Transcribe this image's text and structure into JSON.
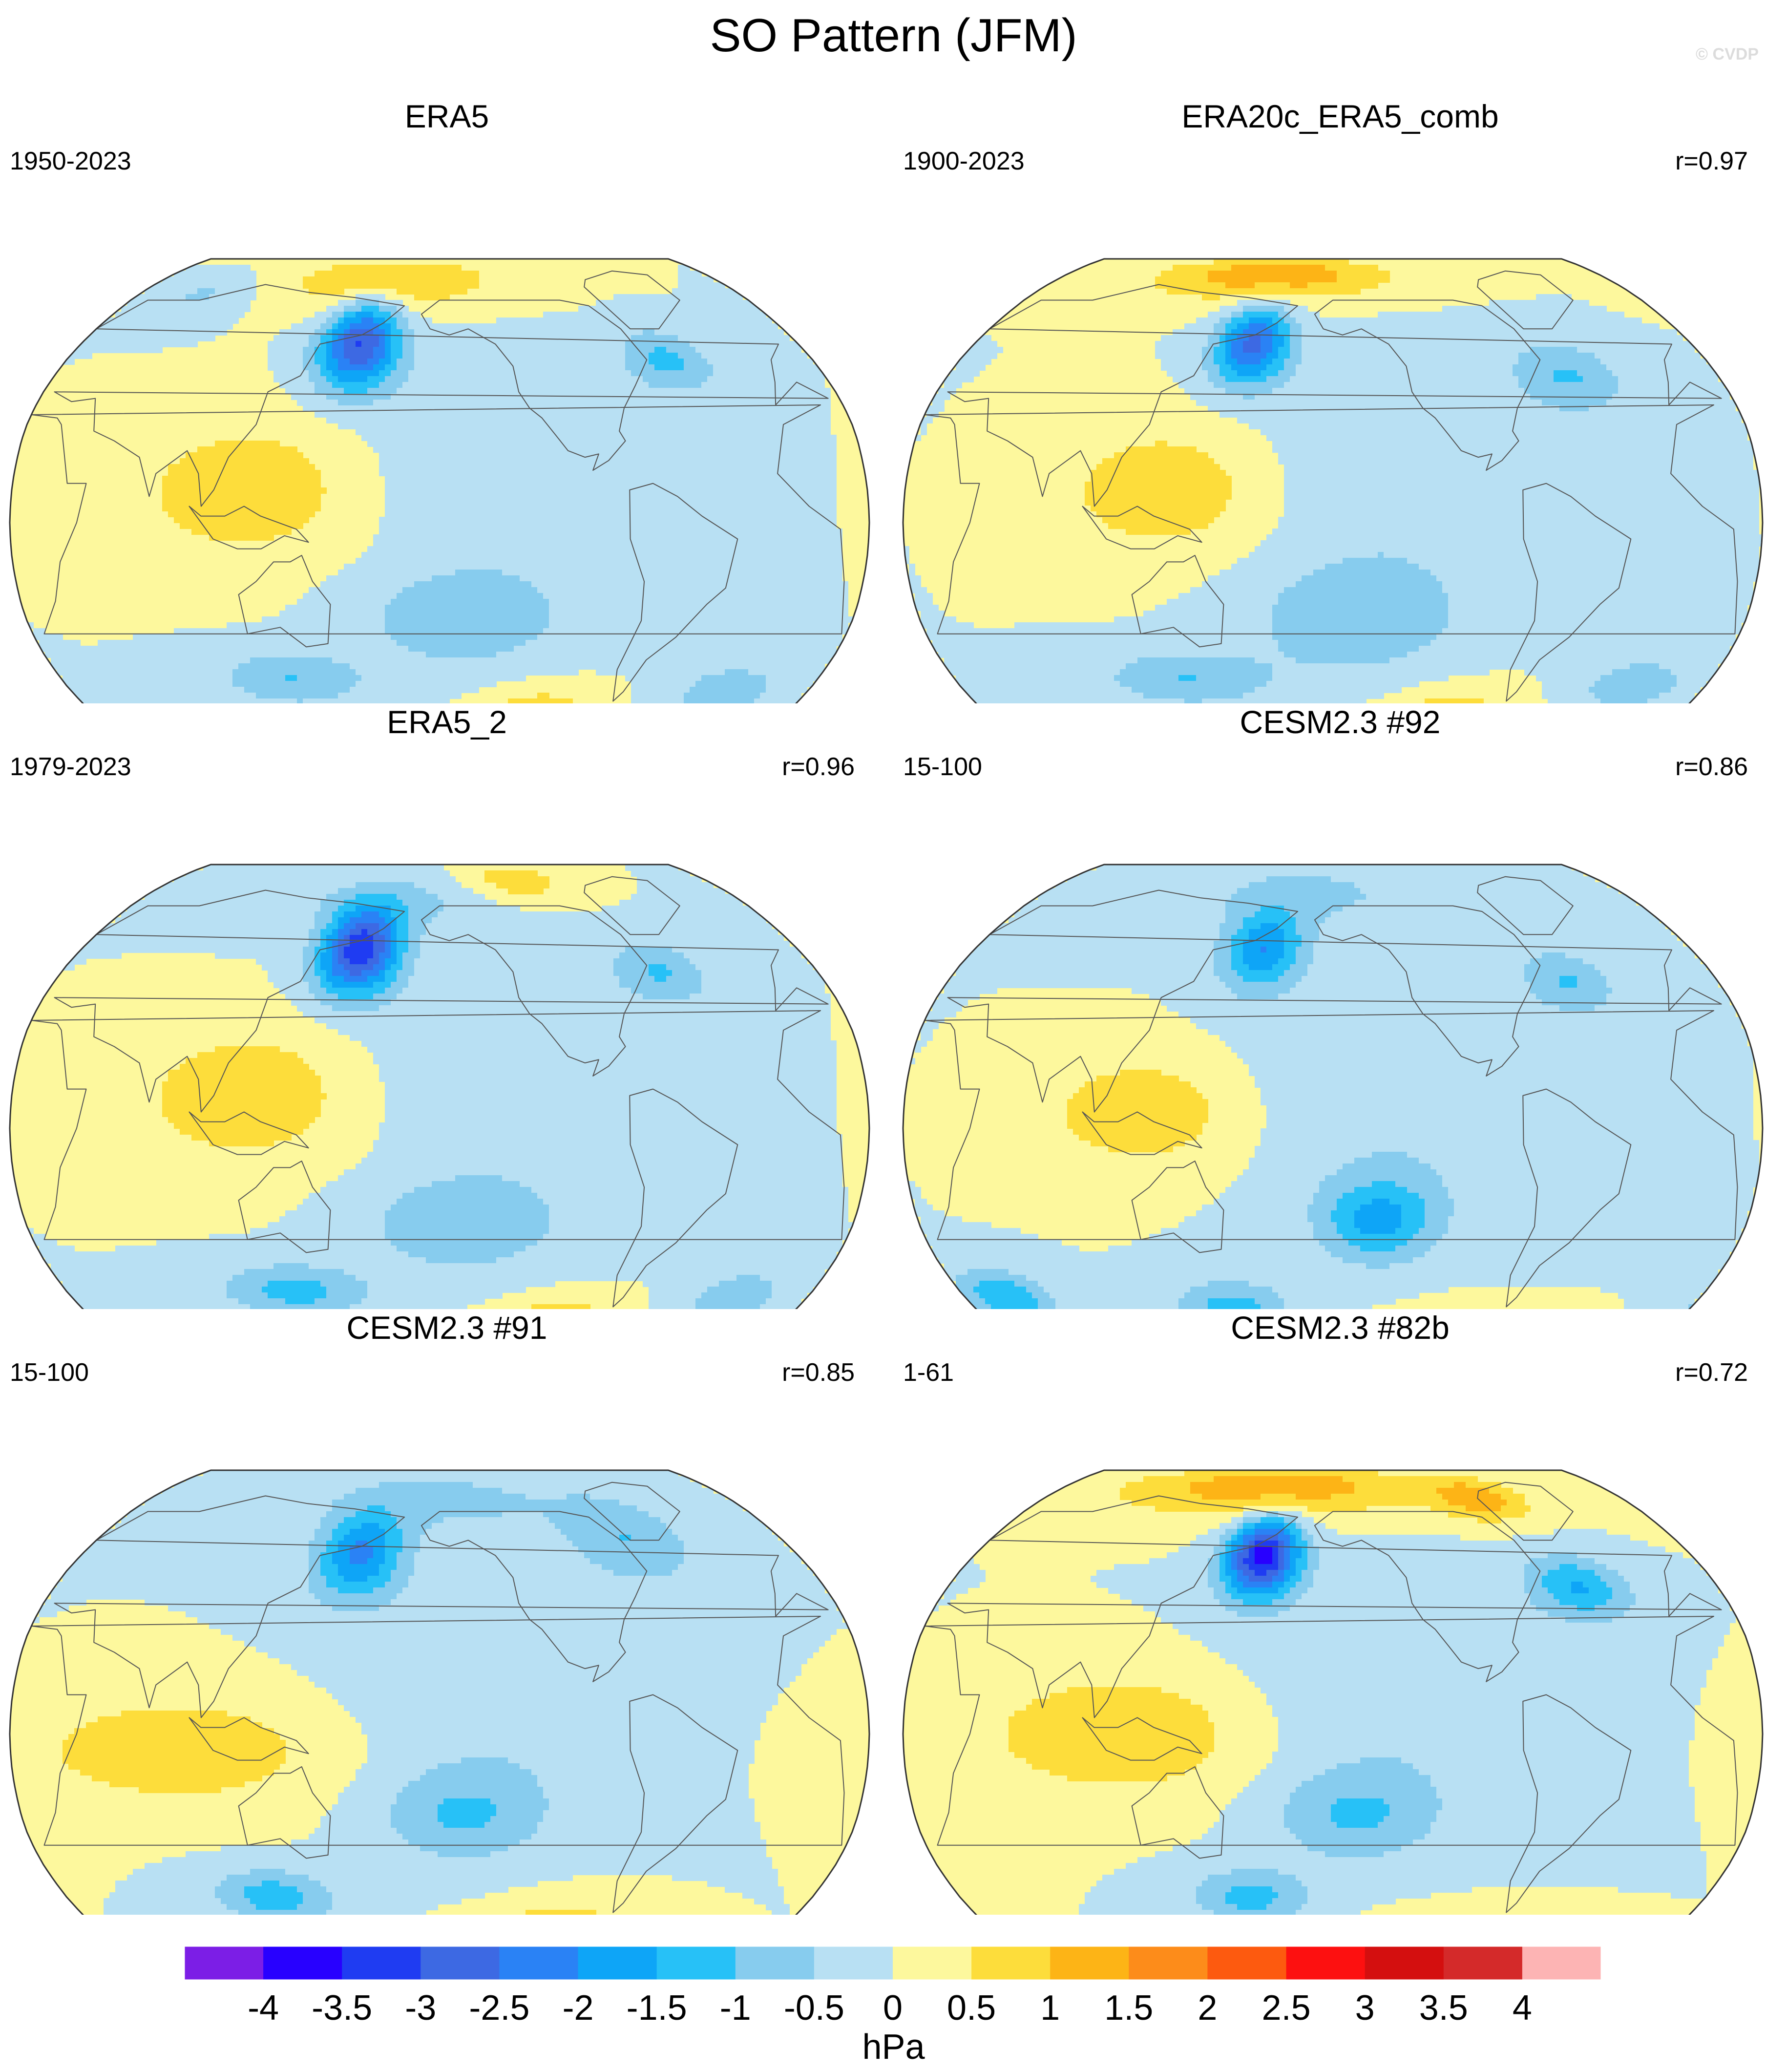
{
  "title": "SO Pattern (JFM)",
  "watermark": "© CVDP",
  "colors": {
    "colorbar": [
      "#7c1ee6",
      "#2800ff",
      "#1f3cf2",
      "#3d69e3",
      "#2a82f5",
      "#0ea5f7",
      "#27c1f7",
      "#87ccee",
      "#b8e0f3",
      "#fdf89d",
      "#fddd3b",
      "#fdb416",
      "#fd8c1a",
      "#fd5a0f",
      "#fd1010",
      "#d40f0f",
      "#d42a2a",
      "#fdb4b4"
    ],
    "coast": "#555555",
    "outline": "#333333"
  },
  "chart_data": [
    {
      "type": "heatmap",
      "projection": "Robinson (Pacific-centered)",
      "title": "ERA5",
      "period": "1950-2023",
      "correlation": "",
      "features": [
        {
          "lon": 160,
          "lat": 55,
          "lon_sd": 14,
          "lat_sd": 10,
          "value": -3.0
        },
        {
          "lon": 170,
          "lat": 78,
          "lon_sd": 50,
          "lat_sd": 8,
          "value": 1.0
        },
        {
          "lon": 310,
          "lat": 50,
          "lon_sd": 15,
          "lat_sd": 7,
          "value": -1.1
        },
        {
          "lon": 60,
          "lat": 72,
          "lon_sd": 20,
          "lat_sd": 6,
          "value": -0.6
        },
        {
          "lon": 120,
          "lat": 10,
          "lon_sd": 35,
          "lat_sd": 15,
          "value": 0.9
        },
        {
          "lon": 210,
          "lat": -30,
          "lon_sd": 30,
          "lat_sd": 10,
          "value": -0.9
        },
        {
          "lon": 130,
          "lat": -48,
          "lon_sd": 25,
          "lat_sd": 6,
          "value": -1.0
        },
        {
          "lon": 250,
          "lat": -65,
          "lon_sd": 20,
          "lat_sd": 8,
          "value": 1.6
        },
        {
          "lon": 340,
          "lat": -52,
          "lon_sd": 18,
          "lat_sd": 6,
          "value": -0.9
        },
        {
          "lon": 230,
          "lat": 15,
          "lon_sd": 45,
          "lat_sd": 25,
          "value": -0.5
        }
      ]
    },
    {
      "type": "heatmap",
      "projection": "Robinson (Pacific-centered)",
      "title": "ERA20c_ERA5_comb",
      "period": "1900-2023",
      "correlation": "r=0.97",
      "features": [
        {
          "lon": 160,
          "lat": 55,
          "lon_sd": 13,
          "lat_sd": 9,
          "value": -2.6
        },
        {
          "lon": 160,
          "lat": 80,
          "lon_sd": 55,
          "lat_sd": 7,
          "value": 1.4
        },
        {
          "lon": 310,
          "lat": 45,
          "lon_sd": 18,
          "lat_sd": 8,
          "value": -1.0
        },
        {
          "lon": 130,
          "lat": 10,
          "lon_sd": 32,
          "lat_sd": 14,
          "value": 0.9
        },
        {
          "lon": 210,
          "lat": -30,
          "lon_sd": 32,
          "lat_sd": 12,
          "value": -0.9
        },
        {
          "lon": 130,
          "lat": -48,
          "lon_sd": 28,
          "lat_sd": 6,
          "value": -1.0
        },
        {
          "lon": 260,
          "lat": -65,
          "lon_sd": 22,
          "lat_sd": 8,
          "value": 1.5
        },
        {
          "lon": 345,
          "lat": -50,
          "lon_sd": 18,
          "lat_sd": 6,
          "value": -0.9
        },
        {
          "lon": 230,
          "lat": 15,
          "lon_sd": 45,
          "lat_sd": 25,
          "value": -0.5
        }
      ]
    },
    {
      "type": "heatmap",
      "projection": "Robinson (Pacific-centered)",
      "title": "ERA5_2",
      "period": "1979-2023",
      "correlation": "r=0.96",
      "features": [
        {
          "lon": 160,
          "lat": 55,
          "lon_sd": 14,
          "lat_sd": 10,
          "value": -3.3
        },
        {
          "lon": 175,
          "lat": 72,
          "lon_sd": 50,
          "lat_sd": 8,
          "value": -0.6
        },
        {
          "lon": 250,
          "lat": 80,
          "lon_sd": 25,
          "lat_sd": 7,
          "value": 0.9
        },
        {
          "lon": 305,
          "lat": 48,
          "lon_sd": 16,
          "lat_sd": 7,
          "value": -1.0
        },
        {
          "lon": 120,
          "lat": 10,
          "lon_sd": 35,
          "lat_sd": 15,
          "value": 0.9
        },
        {
          "lon": 210,
          "lat": -30,
          "lon_sd": 30,
          "lat_sd": 10,
          "value": -0.9
        },
        {
          "lon": 130,
          "lat": -50,
          "lon_sd": 25,
          "lat_sd": 6,
          "value": -1.2
        },
        {
          "lon": 260,
          "lat": -65,
          "lon_sd": 20,
          "lat_sd": 7,
          "value": 1.8
        },
        {
          "lon": 345,
          "lat": -52,
          "lon_sd": 16,
          "lat_sd": 6,
          "value": -0.9
        },
        {
          "lon": 230,
          "lat": 15,
          "lon_sd": 45,
          "lat_sd": 25,
          "value": -0.5
        }
      ]
    },
    {
      "type": "heatmap",
      "projection": "Robinson (Pacific-centered)",
      "title": "CESM2.3 #92",
      "period": "15-100",
      "correlation": "r=0.86",
      "features": [
        {
          "lon": 165,
          "lat": 55,
          "lon_sd": 14,
          "lat_sd": 9,
          "value": -1.9
        },
        {
          "lon": 310,
          "lat": 45,
          "lon_sd": 15,
          "lat_sd": 7,
          "value": -1.0
        },
        {
          "lon": 180,
          "lat": 75,
          "lon_sd": 60,
          "lat_sd": 10,
          "value": -0.6
        },
        {
          "lon": 120,
          "lat": 5,
          "lon_sd": 30,
          "lat_sd": 12,
          "value": 0.9
        },
        {
          "lon": 220,
          "lat": -28,
          "lon_sd": 18,
          "lat_sd": 9,
          "value": -1.6
        },
        {
          "lon": 40,
          "lat": -52,
          "lon_sd": 15,
          "lat_sd": 6,
          "value": -1.5
        },
        {
          "lon": 150,
          "lat": -55,
          "lon_sd": 20,
          "lat_sd": 6,
          "value": -1.2
        },
        {
          "lon": 270,
          "lat": -65,
          "lon_sd": 25,
          "lat_sd": 6,
          "value": 1.2
        },
        {
          "lon": 230,
          "lat": 10,
          "lon_sd": 45,
          "lat_sd": 25,
          "value": -0.5
        }
      ]
    },
    {
      "type": "heatmap",
      "projection": "Robinson (Pacific-centered)",
      "title": "CESM2.3 #91",
      "period": "15-100",
      "correlation": "r=0.85",
      "features": [
        {
          "lon": 160,
          "lat": 55,
          "lon_sd": 15,
          "lat_sd": 10,
          "value": -2.0
        },
        {
          "lon": 300,
          "lat": 60,
          "lon_sd": 22,
          "lat_sd": 10,
          "value": -0.9
        },
        {
          "lon": 200,
          "lat": 75,
          "lon_sd": 70,
          "lat_sd": 10,
          "value": -0.6
        },
        {
          "lon": 90,
          "lat": -5,
          "lon_sd": 45,
          "lat_sd": 12,
          "value": 0.9
        },
        {
          "lon": 210,
          "lat": -25,
          "lon_sd": 25,
          "lat_sd": 10,
          "value": -1.0
        },
        {
          "lon": 120,
          "lat": -50,
          "lon_sd": 20,
          "lat_sd": 6,
          "value": -1.3
        },
        {
          "lon": 260,
          "lat": -65,
          "lon_sd": 25,
          "lat_sd": 8,
          "value": 1.4
        },
        {
          "lon": 230,
          "lat": 15,
          "lon_sd": 45,
          "lat_sd": 25,
          "value": -0.5
        }
      ]
    },
    {
      "type": "heatmap",
      "projection": "Robinson (Pacific-centered)",
      "title": "CESM2.3 #82b",
      "period": "1-61",
      "correlation": "r=0.72",
      "features": [
        {
          "lon": 165,
          "lat": 55,
          "lon_sd": 13,
          "lat_sd": 9,
          "value": -3.7
        },
        {
          "lon": 160,
          "lat": 80,
          "lon_sd": 70,
          "lat_sd": 8,
          "value": 1.4
        },
        {
          "lon": 290,
          "lat": 75,
          "lon_sd": 20,
          "lat_sd": 6,
          "value": 1.2
        },
        {
          "lon": 315,
          "lat": 45,
          "lon_sd": 16,
          "lat_sd": 7,
          "value": -1.5
        },
        {
          "lon": 110,
          "lat": 0,
          "lon_sd": 40,
          "lat_sd": 13,
          "value": 1.0
        },
        {
          "lon": 210,
          "lat": -25,
          "lon_sd": 25,
          "lat_sd": 10,
          "value": -1.0
        },
        {
          "lon": 160,
          "lat": -50,
          "lon_sd": 20,
          "lat_sd": 6,
          "value": -1.2
        },
        {
          "lon": 270,
          "lat": -65,
          "lon_sd": 28,
          "lat_sd": 6,
          "value": 1.4
        },
        {
          "lon": 230,
          "lat": 15,
          "lon_sd": 45,
          "lat_sd": 25,
          "value": -0.5
        }
      ]
    }
  ],
  "colorbar": {
    "levels": [
      -4,
      -3.5,
      -3,
      -2.5,
      -2,
      -1.5,
      -1,
      -0.5,
      0,
      0.5,
      1,
      1.5,
      2,
      2.5,
      3,
      3.5,
      4
    ],
    "tick_labels": [
      "-4",
      "-3.5",
      "-3",
      "-2.5",
      "-2",
      "-1.5",
      "-1",
      "-0.5",
      "0",
      "0.5",
      "1",
      "1.5",
      "2",
      "2.5",
      "3",
      "3.5",
      "4"
    ],
    "unit": "hPa"
  }
}
